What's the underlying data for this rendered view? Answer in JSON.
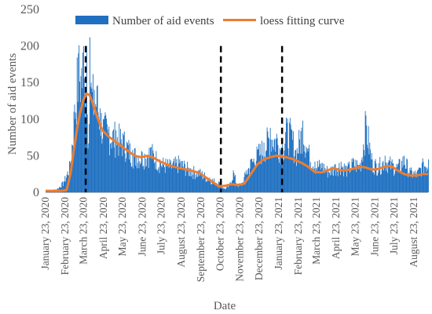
{
  "chart_data": {
    "type": "bar",
    "title": "",
    "xlabel": "Date",
    "ylabel": "Number of aid events",
    "ylim": [
      0,
      250
    ],
    "yticks": [
      0,
      50,
      100,
      150,
      200,
      250
    ],
    "x_range": [
      "2020-01-23",
      "2021-09-14"
    ],
    "xtick_labels": [
      {
        "date": "2020-01-23",
        "label": "January 23, 2020"
      },
      {
        "date": "2020-02-23",
        "label": "February 23, 2020"
      },
      {
        "date": "2020-03-23",
        "label": "March 23, 2020"
      },
      {
        "date": "2020-04-23",
        "label": "April 23, 2020"
      },
      {
        "date": "2020-05-23",
        "label": "May 23, 2020"
      },
      {
        "date": "2020-06-23",
        "label": "June 23, 2020"
      },
      {
        "date": "2020-07-23",
        "label": "July 23, 2020"
      },
      {
        "date": "2020-08-23",
        "label": "August 23, 2020"
      },
      {
        "date": "2020-09-23",
        "label": "September 23, 2020"
      },
      {
        "date": "2020-10-23",
        "label": "October 23, 2020"
      },
      {
        "date": "2020-11-23",
        "label": "November 23, 2020"
      },
      {
        "date": "2020-12-23",
        "label": "December 23, 2020"
      },
      {
        "date": "2021-01-23",
        "label": "January 23, 2021"
      },
      {
        "date": "2021-02-23",
        "label": "February 23, 2021"
      },
      {
        "date": "2021-03-23",
        "label": "March 23, 2021"
      },
      {
        "date": "2021-04-23",
        "label": "April 23, 2021"
      },
      {
        "date": "2021-05-23",
        "label": "May 23, 2021"
      },
      {
        "date": "2021-06-23",
        "label": "June 23, 2021"
      },
      {
        "date": "2021-07-23",
        "label": "July 23, 2021"
      },
      {
        "date": "2021-08-23",
        "label": "August 23, 2021"
      }
    ],
    "series": [
      {
        "name": "Number of aid events",
        "kind": "bar",
        "color": "#1f70c1",
        "points": [
          [
            "2020-01-23",
            2
          ],
          [
            "2020-02-01",
            3
          ],
          [
            "2020-02-10",
            5
          ],
          [
            "2020-02-20",
            15
          ],
          [
            "2020-03-01",
            40
          ],
          [
            "2020-03-08",
            120
          ],
          [
            "2020-03-14",
            190
          ],
          [
            "2020-03-19",
            170
          ],
          [
            "2020-03-22",
            200
          ],
          [
            "2020-03-24",
            130
          ],
          [
            "2020-03-27",
            200
          ],
          [
            "2020-03-29",
            60
          ],
          [
            "2020-04-01",
            212
          ],
          [
            "2020-04-03",
            150
          ],
          [
            "2020-04-08",
            140
          ],
          [
            "2020-04-12",
            145
          ],
          [
            "2020-04-17",
            115
          ],
          [
            "2020-04-22",
            100
          ],
          [
            "2020-05-01",
            90
          ],
          [
            "2020-05-12",
            85
          ],
          [
            "2020-05-24",
            78
          ],
          [
            "2020-06-07",
            58
          ],
          [
            "2020-06-22",
            55
          ],
          [
            "2020-07-06",
            62
          ],
          [
            "2020-07-20",
            45
          ],
          [
            "2020-08-05",
            40
          ],
          [
            "2020-08-20",
            45
          ],
          [
            "2020-09-06",
            33
          ],
          [
            "2020-09-20",
            30
          ],
          [
            "2020-10-06",
            20
          ],
          [
            "2020-10-20",
            15
          ],
          [
            "2020-10-29",
            5
          ],
          [
            "2020-11-06",
            10
          ],
          [
            "2020-11-12",
            30
          ],
          [
            "2020-11-18",
            12
          ],
          [
            "2020-11-25",
            10
          ],
          [
            "2020-12-02",
            30
          ],
          [
            "2020-12-10",
            45
          ],
          [
            "2020-12-20",
            58
          ],
          [
            "2020-12-30",
            68
          ],
          [
            "2021-01-09",
            88
          ],
          [
            "2021-01-19",
            80
          ],
          [
            "2021-01-28",
            65
          ],
          [
            "2021-02-04",
            95
          ],
          [
            "2021-02-12",
            85
          ],
          [
            "2021-02-18",
            58
          ],
          [
            "2021-03-01",
            98
          ],
          [
            "2021-03-10",
            60
          ],
          [
            "2021-03-20",
            42
          ],
          [
            "2021-04-01",
            40
          ],
          [
            "2021-04-10",
            32
          ],
          [
            "2021-04-20",
            38
          ],
          [
            "2021-04-30",
            42
          ],
          [
            "2021-05-10",
            35
          ],
          [
            "2021-05-20",
            45
          ],
          [
            "2021-05-30",
            40
          ],
          [
            "2021-06-08",
            105
          ],
          [
            "2021-06-18",
            45
          ],
          [
            "2021-06-28",
            40
          ],
          [
            "2021-07-08",
            50
          ],
          [
            "2021-07-18",
            42
          ],
          [
            "2021-07-28",
            38
          ],
          [
            "2021-08-07",
            50
          ],
          [
            "2021-08-17",
            30
          ],
          [
            "2021-08-27",
            28
          ],
          [
            "2021-09-06",
            42
          ],
          [
            "2021-09-14",
            45
          ]
        ]
      },
      {
        "name": "loess fitting curve",
        "kind": "line",
        "color": "#ed7d31",
        "points": [
          [
            "2020-01-23",
            2
          ],
          [
            "2020-02-05",
            2
          ],
          [
            "2020-02-15",
            2
          ],
          [
            "2020-02-25",
            3
          ],
          [
            "2020-03-02",
            25
          ],
          [
            "2020-03-07",
            55
          ],
          [
            "2020-03-12",
            85
          ],
          [
            "2020-03-17",
            108
          ],
          [
            "2020-03-22",
            125
          ],
          [
            "2020-03-27",
            135
          ],
          [
            "2020-04-01",
            133
          ],
          [
            "2020-04-06",
            122
          ],
          [
            "2020-04-11",
            108
          ],
          [
            "2020-04-16",
            96
          ],
          [
            "2020-04-21",
            85
          ],
          [
            "2020-05-01",
            76
          ],
          [
            "2020-05-11",
            70
          ],
          [
            "2020-05-21",
            63
          ],
          [
            "2020-06-01",
            56
          ],
          [
            "2020-06-11",
            50
          ],
          [
            "2020-06-21",
            48
          ],
          [
            "2020-07-01",
            50
          ],
          [
            "2020-07-11",
            47
          ],
          [
            "2020-07-21",
            42
          ],
          [
            "2020-08-01",
            38
          ],
          [
            "2020-08-11",
            35
          ],
          [
            "2020-08-21",
            33
          ],
          [
            "2020-09-01",
            31
          ],
          [
            "2020-09-11",
            29
          ],
          [
            "2020-09-21",
            26
          ],
          [
            "2020-10-01",
            20
          ],
          [
            "2020-10-11",
            14
          ],
          [
            "2020-10-21",
            8
          ],
          [
            "2020-10-31",
            9
          ],
          [
            "2020-11-10",
            11
          ],
          [
            "2020-11-20",
            10
          ],
          [
            "2020-11-30",
            12
          ],
          [
            "2020-12-10",
            25
          ],
          [
            "2020-12-20",
            38
          ],
          [
            "2020-12-30",
            45
          ],
          [
            "2021-01-09",
            48
          ],
          [
            "2021-01-19",
            50
          ],
          [
            "2021-01-29",
            49
          ],
          [
            "2021-02-08",
            47
          ],
          [
            "2021-02-18",
            44
          ],
          [
            "2021-02-28",
            40
          ],
          [
            "2021-03-10",
            35
          ],
          [
            "2021-03-20",
            28
          ],
          [
            "2021-03-30",
            27
          ],
          [
            "2021-04-09",
            30
          ],
          [
            "2021-04-19",
            33
          ],
          [
            "2021-04-29",
            30
          ],
          [
            "2021-05-09",
            30
          ],
          [
            "2021-05-19",
            32
          ],
          [
            "2021-05-29",
            35
          ],
          [
            "2021-06-08",
            34
          ],
          [
            "2021-06-18",
            31
          ],
          [
            "2021-06-28",
            32
          ],
          [
            "2021-07-08",
            35
          ],
          [
            "2021-07-18",
            36
          ],
          [
            "2021-07-28",
            30
          ],
          [
            "2021-08-07",
            25
          ],
          [
            "2021-08-17",
            23
          ],
          [
            "2021-08-27",
            23
          ],
          [
            "2021-09-06",
            25
          ],
          [
            "2021-09-14",
            25
          ]
        ]
      }
    ],
    "vertical_markers": [
      {
        "date": "2020-03-26",
        "style": "dashed",
        "color": "#000000"
      },
      {
        "date": "2020-10-24",
        "style": "dashed",
        "color": "#000000"
      },
      {
        "date": "2021-01-28",
        "style": "dashed",
        "color": "#000000"
      }
    ],
    "legend": {
      "placement": "top"
    },
    "grid": false
  }
}
